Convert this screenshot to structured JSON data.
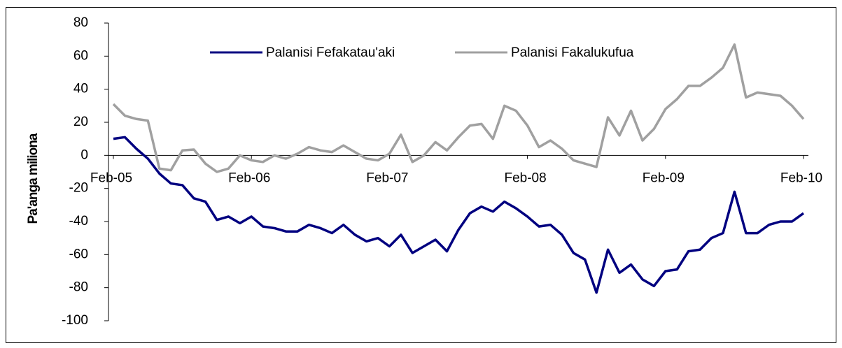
{
  "chart_data": {
    "type": "line",
    "y_label": "Pa'anga miliona",
    "categories": [
      "Feb-05",
      null,
      null,
      null,
      null,
      null,
      null,
      null,
      null,
      null,
      null,
      null,
      "Feb-06",
      null,
      null,
      null,
      null,
      null,
      null,
      null,
      null,
      null,
      null,
      null,
      "Feb-07",
      null,
      null,
      null,
      null,
      null,
      null,
      null,
      null,
      null,
      null,
      null,
      "Feb-08",
      null,
      null,
      null,
      null,
      null,
      null,
      null,
      null,
      null,
      null,
      null,
      "Feb-09",
      null,
      null,
      null,
      null,
      null,
      null,
      null,
      null,
      null,
      null,
      null,
      "Feb-10"
    ],
    "series": [
      {
        "name": "Palanisi Fefakatau'aki",
        "color": "#000080",
        "values": [
          10,
          11,
          4,
          -2,
          -11,
          -17,
          -18,
          -26,
          -28,
          -39,
          -37,
          -41,
          -37,
          -43,
          -44,
          -46,
          -46,
          -42,
          -44,
          -47,
          -42,
          -48,
          -52,
          -50,
          -55,
          -48,
          -59,
          -55,
          -51,
          -58,
          -45,
          -35,
          -31,
          -34,
          -28,
          -32,
          -37,
          -43,
          -42,
          -48,
          -59,
          -63,
          -83,
          -57,
          -71,
          -66,
          -75,
          -79,
          -70,
          -69,
          -58,
          -57,
          -50,
          -47,
          -22,
          -47,
          -47,
          -42,
          -40,
          -40,
          -35
        ]
      },
      {
        "name": "Palanisi Fakalukufua",
        "color": "#a0a0a0",
        "values": [
          31,
          24,
          22,
          21,
          -8,
          -9,
          3,
          3.5,
          -5,
          -10,
          -8,
          0,
          -3,
          -4,
          0,
          -2,
          1,
          5,
          3,
          2,
          6,
          2,
          -2,
          -3,
          1,
          12.5,
          -4,
          0,
          8,
          3,
          11,
          18,
          19,
          10,
          30,
          27,
          18,
          5,
          9,
          4,
          -3,
          -5,
          -7,
          23,
          12,
          27,
          9,
          16,
          28,
          34,
          42,
          42,
          47,
          53,
          67,
          35,
          38,
          37,
          36,
          30,
          22
        ]
      }
    ],
    "ylim": [
      -100,
      80
    ],
    "yticks": [
      -100,
      -80,
      -60,
      -40,
      -20,
      0,
      20,
      40,
      60,
      80
    ],
    "grid": false
  }
}
